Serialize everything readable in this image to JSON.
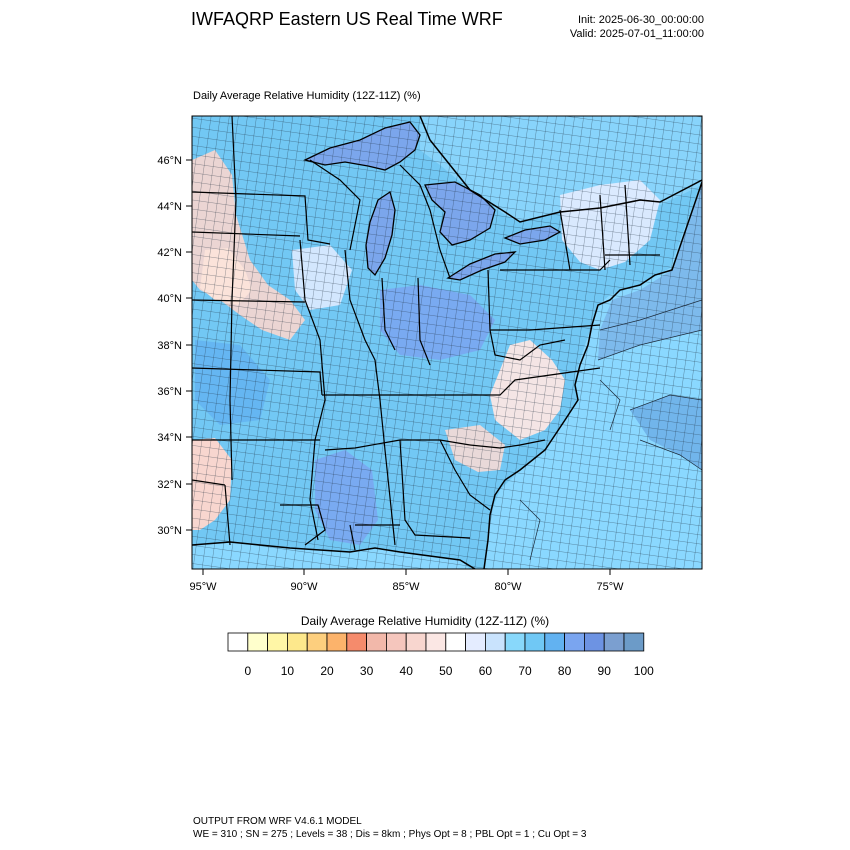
{
  "header": {
    "title": "IWFAQRP Eastern US Real Time WRF",
    "init": "Init: 2025-06-30_00:00:00",
    "valid": "Valid: 2025-07-01_11:00:00"
  },
  "map": {
    "subtitle": "Daily Average Relative Humidity (12Z-11Z)   (%)",
    "lat_labels": [
      "46°N",
      "44°N",
      "42°N",
      "40°N",
      "38°N",
      "36°N",
      "34°N",
      "32°N",
      "30°N"
    ],
    "lon_labels": [
      "95°W",
      "90°W",
      "85°W",
      "80°W",
      "75°W"
    ],
    "ocean_color": "#8ad8ff",
    "land_base_color": "#72c8f4"
  },
  "colorbar": {
    "title": "Daily Average Relative Humidity (12Z-11Z)  (%)",
    "tick_labels": [
      "0",
      "10",
      "20",
      "30",
      "40",
      "50",
      "60",
      "70",
      "80",
      "90",
      "100"
    ],
    "colors": [
      "#ffffff",
      "#ffffcc",
      "#fff6a6",
      "#fde88c",
      "#fdcf7e",
      "#fcb36b",
      "#f58b6c",
      "#f2b8aa",
      "#f5c6bd",
      "#f8d6cf",
      "#fbe7e4",
      "#ffffff",
      "#e4ecff",
      "#c9e3fd",
      "#88d8fb",
      "#70c8f5",
      "#62b2f1",
      "#7aa5f0",
      "#6d93e3",
      "#7b9fd0",
      "#6c9bc8"
    ]
  },
  "footer": {
    "line1": "OUTPUT FROM WRF V4.6.1 MODEL",
    "line2": "WE = 310 ; SN = 275 ; Levels = 38 ; Dis = 8km ; Phys Opt = 8 ; PBL Opt = 1 ; Cu Opt = 3"
  }
}
